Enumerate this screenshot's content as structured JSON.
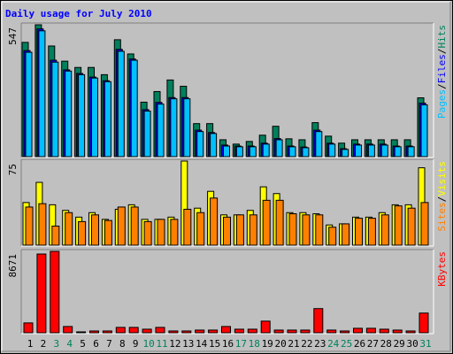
{
  "chart_data": [
    {
      "type": "bar",
      "title": "Daily usage for July 2010",
      "title_color": "#0000ff",
      "legend_separator": "/",
      "ylim": [
        0,
        547
      ],
      "yticks": [
        547
      ],
      "series": [
        {
          "name": "Pages",
          "color": "#00c0ff",
          "values": [
            433,
            522,
            392,
            355,
            340,
            326,
            311,
            437,
            400,
            189,
            218,
            240,
            240,
            104,
            96,
            44,
            41,
            41,
            52,
            70,
            41,
            37,
            104,
            52,
            30,
            48,
            48,
            48,
            41,
            41,
            215
          ]
        },
        {
          "name": "Files",
          "color": "#0000ff",
          "values": [
            440,
            530,
            400,
            360,
            345,
            330,
            315,
            445,
            405,
            195,
            225,
            245,
            245,
            110,
            100,
            48,
            44,
            44,
            56,
            75,
            44,
            40,
            110,
            56,
            33,
            52,
            52,
            52,
            44,
            44,
            222
          ]
        },
        {
          "name": "Hits",
          "color": "#00805c",
          "values": [
            474,
            547,
            459,
            396,
            370,
            370,
            340,
            485,
            426,
            226,
            270,
            318,
            292,
            137,
            137,
            70,
            52,
            63,
            89,
            126,
            74,
            70,
            141,
            85,
            56,
            70,
            70,
            70,
            70,
            70,
            244
          ]
        }
      ]
    },
    {
      "type": "bar",
      "legend_separator": "/",
      "ylim": [
        0,
        75
      ],
      "yticks": [
        75
      ],
      "series": [
        {
          "name": "Sites",
          "color": "#ff8000",
          "values": [
            34,
            37,
            17,
            29,
            21,
            27,
            22,
            34,
            34,
            21,
            23,
            23,
            32,
            29,
            42,
            25,
            27,
            27,
            40,
            40,
            28,
            27,
            27,
            16,
            19,
            24,
            24,
            27,
            35,
            33,
            38
          ]
        },
        {
          "name": "Visits",
          "color": "#ffff00",
          "values": [
            38,
            56,
            36,
            31,
            25,
            29,
            23,
            32,
            36,
            23,
            23,
            25,
            75,
            33,
            48,
            27,
            27,
            31,
            52,
            46,
            29,
            29,
            28,
            18,
            19,
            25,
            25,
            29,
            36,
            36,
            69
          ]
        }
      ]
    },
    {
      "type": "bar",
      "ylim": [
        0,
        8671
      ],
      "yticks": [
        8671
      ],
      "series": [
        {
          "name": "KBytes",
          "color": "#ff0000",
          "values": [
            1048,
            8386,
            8671,
            667,
            95,
            191,
            191,
            572,
            572,
            381,
            572,
            191,
            191,
            286,
            286,
            667,
            381,
            381,
            1239,
            286,
            286,
            286,
            2573,
            286,
            191,
            477,
            477,
            381,
            286,
            191,
            2097
          ]
        }
      ],
      "categories": [
        "1",
        "2",
        "3",
        "4",
        "5",
        "6",
        "7",
        "8",
        "9",
        "10",
        "11",
        "12",
        "13",
        "14",
        "15",
        "16",
        "17",
        "18",
        "19",
        "20",
        "21",
        "22",
        "23",
        "24",
        "25",
        "26",
        "27",
        "28",
        "29",
        "30",
        "31"
      ],
      "category_colors": [
        "#000000",
        "#000000",
        "#00805c",
        "#00805c",
        "#000000",
        "#000000",
        "#000000",
        "#000000",
        "#000000",
        "#00805c",
        "#00805c",
        "#000000",
        "#000000",
        "#000000",
        "#000000",
        "#000000",
        "#00805c",
        "#00805c",
        "#000000",
        "#000000",
        "#000000",
        "#000000",
        "#000000",
        "#00805c",
        "#00805c",
        "#000000",
        "#000000",
        "#000000",
        "#000000",
        "#000000",
        "#00805c"
      ]
    }
  ]
}
